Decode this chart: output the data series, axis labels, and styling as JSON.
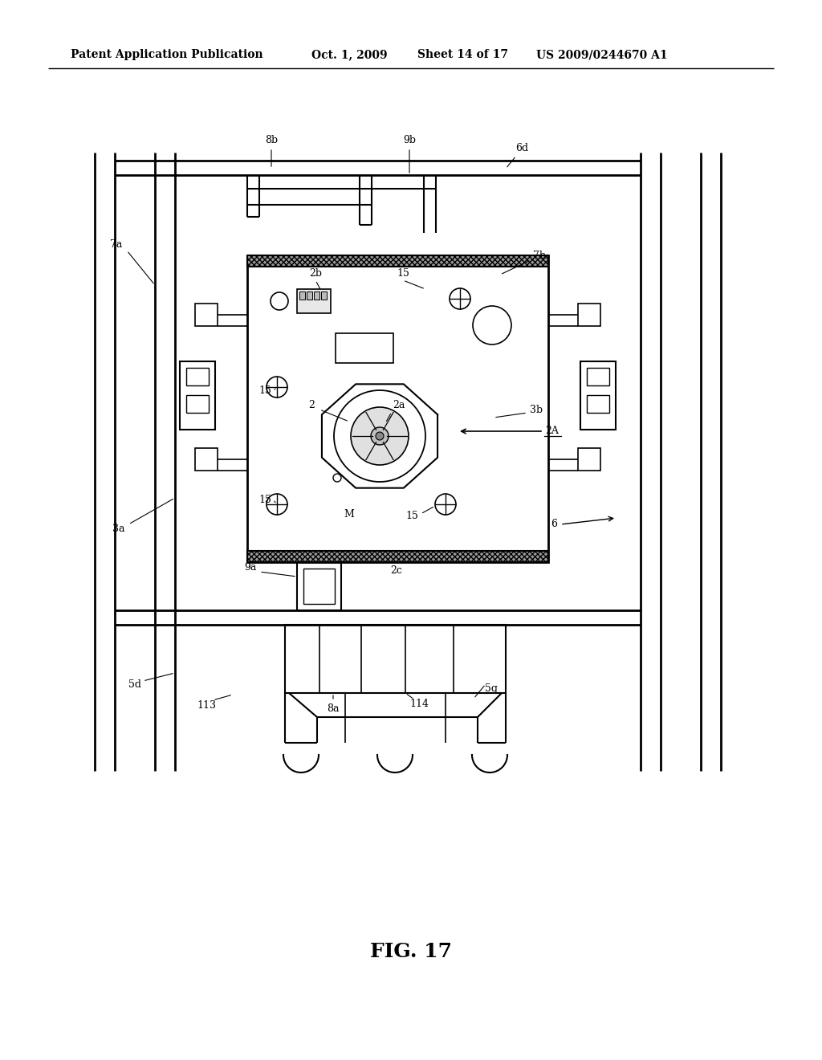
{
  "bg_color": "#ffffff",
  "line_color": "#000000",
  "header_text": "Patent Application Publication",
  "header_date": "Oct. 1, 2009",
  "header_sheet": "Sheet 14 of 17",
  "header_patent": "US 2009/0244670 A1",
  "figure_label": "FIG. 17"
}
